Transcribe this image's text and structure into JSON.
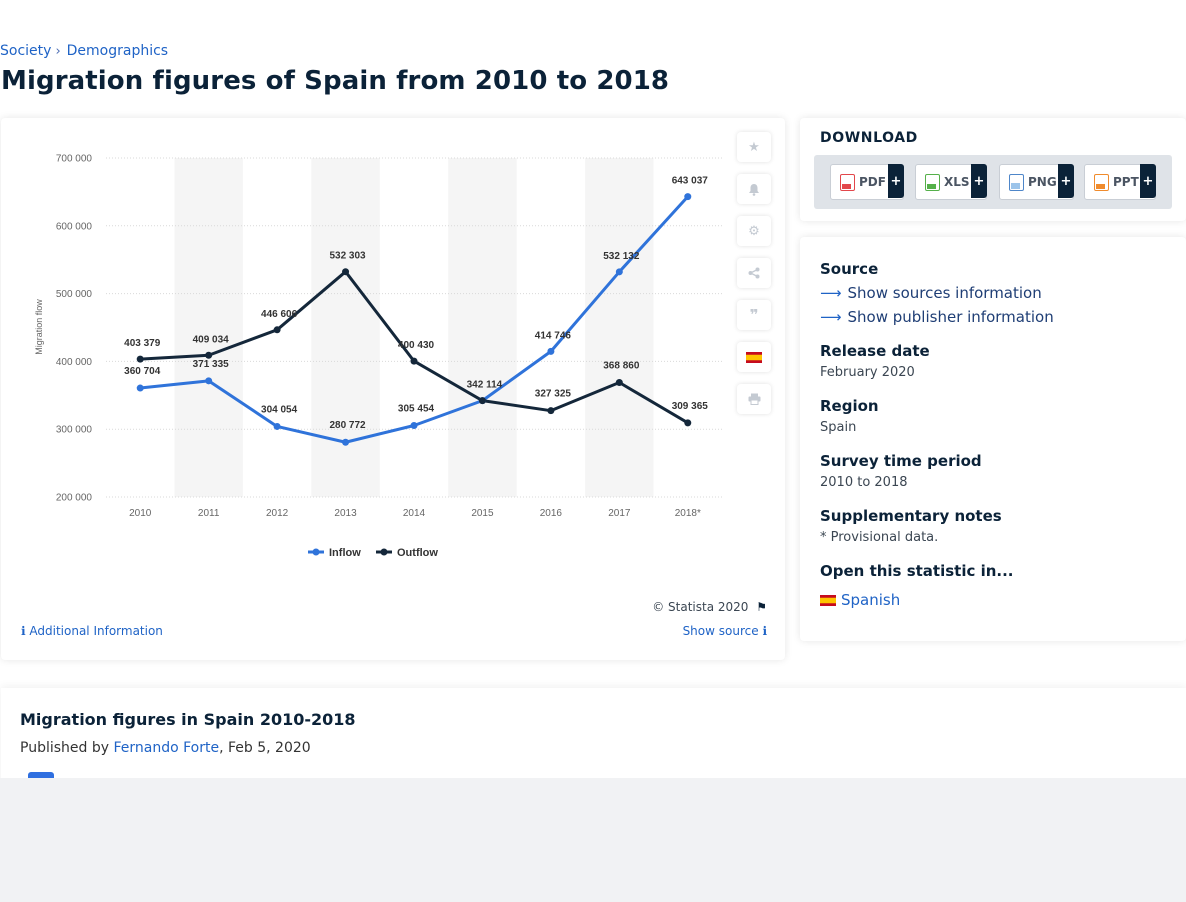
{
  "breadcrumb": {
    "items": [
      "Society",
      "Demographics"
    ]
  },
  "page_title": "Migration figures of Spain from 2010 to 2018",
  "chart_data": {
    "type": "line",
    "categories": [
      "2010",
      "2011",
      "2012",
      "2013",
      "2014",
      "2015",
      "2016",
      "2017",
      "2018*"
    ],
    "series": [
      {
        "name": "Inflow",
        "color": "#2f73da",
        "values": [
          360704,
          371335,
          304054,
          280772,
          305454,
          342114,
          414746,
          532132,
          643037
        ]
      },
      {
        "name": "Outflow",
        "color": "#14273a",
        "values": [
          403379,
          409034,
          446606,
          532303,
          400430,
          342114,
          327325,
          368860,
          309365
        ]
      }
    ],
    "data_labels": {
      "Inflow": [
        "360 704",
        "371 335",
        "304 054",
        "280 772",
        "305 454",
        "342 114",
        "414 746",
        "532 132",
        "643 037"
      ],
      "Outflow": [
        "403 379",
        "409 034",
        "446 606",
        "532 303",
        "400 430",
        "",
        "327 325",
        "368 860",
        "309 365"
      ]
    },
    "ylabel": "Migration flow",
    "ylim": [
      200000,
      700000
    ],
    "yticks": [
      "200 000",
      "300 000",
      "400 000",
      "500 000",
      "600 000",
      "700 000"
    ],
    "ytick_values": [
      200000,
      300000,
      400000,
      500000,
      600000,
      700000
    ],
    "grid": true,
    "legend_position": "bottom"
  },
  "chart_footer": {
    "copyright": "© Statista 2020",
    "additional_info": "Additional Information",
    "show_source": "Show source"
  },
  "toolbar_icons": [
    "star-icon",
    "bell-icon",
    "gear-icon",
    "share-icon",
    "quote-icon",
    "spain-flag-icon",
    "print-icon"
  ],
  "download": {
    "title": "DOWNLOAD",
    "buttons": [
      {
        "label": "PDF",
        "color": "#e2474b",
        "plus": "+"
      },
      {
        "label": "XLS",
        "color": "#55b04a",
        "plus": "+"
      },
      {
        "label": "PNG",
        "color": "#4e86c9",
        "plus": "+"
      },
      {
        "label": "PPT",
        "color": "#f08b2c",
        "plus": "+"
      }
    ]
  },
  "info": {
    "source_label": "Source",
    "show_sources": "Show sources information",
    "show_publisher": "Show publisher information",
    "release_label": "Release date",
    "release_value": "February 2020",
    "region_label": "Region",
    "region_value": "Spain",
    "period_label": "Survey time period",
    "period_value": "2010 to 2018",
    "notes_label": "Supplementary notes",
    "notes_value": "* Provisional data.",
    "open_label": "Open this statistic in...",
    "open_language": "Spanish"
  },
  "article": {
    "title": "Migration figures in Spain 2010-2018",
    "published_by": "Published by",
    "author": "Fernando Forte",
    "date": ", Feb 5, 2020"
  }
}
